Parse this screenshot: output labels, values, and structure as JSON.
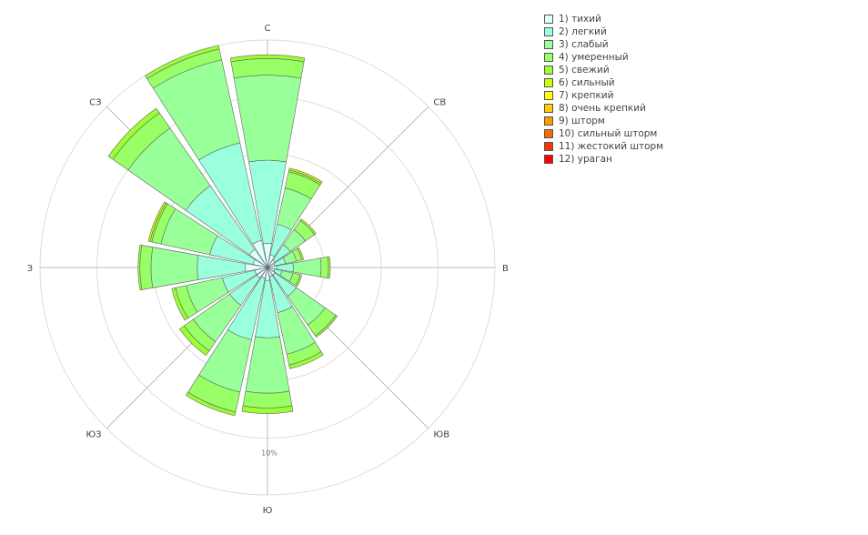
{
  "chart_data": {
    "type": "barpolar",
    "title": "",
    "directions": [
      "С",
      "ССВ",
      "СВ",
      "ВСВ",
      "В",
      "ВЮВ",
      "ЮВ",
      "ЮЮВ",
      "Ю",
      "ЮЮЗ",
      "ЮЗ",
      "ЗЮЗ",
      "З",
      "ЗСЗ",
      "СЗ",
      "ССЗ"
    ],
    "direction_labels": [
      "С",
      "СВ",
      "В",
      "ЮВ",
      "Ю",
      "ЮЗ",
      "З",
      "СЗ"
    ],
    "radial_tick_label": "10%",
    "radial_range": [
      0,
      12.3
    ],
    "series": [
      {
        "name": "1) тихий",
        "color": "#e0ffff",
        "values": [
          1.3,
          0.7,
          0.5,
          0.4,
          0.5,
          0.4,
          0.5,
          0.5,
          0.7,
          0.6,
          0.7,
          0.7,
          1.2,
          0.8,
          1.2,
          1.5
        ]
      },
      {
        "name": "2) легкий",
        "color": "#99ffdd",
        "values": [
          5.8,
          2.4,
          1.5,
          1.0,
          1.4,
          0.8,
          1.9,
          2.5,
          3.8,
          4.0,
          2.5,
          2.5,
          3.8,
          3.2,
          5.4,
          6.9
        ]
      },
      {
        "name": "3) слабый",
        "color": "#99ff99",
        "values": [
          10.4,
          4.4,
          2.5,
          1.6,
          2.9,
          1.4,
          3.8,
          4.8,
          6.8,
          6.9,
          4.9,
          4.5,
          6.3,
          5.9,
          9.2,
          11.5
        ]
      },
      {
        "name": "4) умеренный",
        "color": "#99ff66",
        "values": [
          11.3,
          5.3,
          3.1,
          1.9,
          3.3,
          1.8,
          4.5,
          5.4,
          7.6,
          8.0,
          5.5,
          5.1,
          6.9,
          6.4,
          10.2,
          12.1
        ]
      },
      {
        "name": "5) свежий",
        "color": "#99ff33",
        "values": [
          11.5,
          5.4,
          3.2,
          2.0,
          3.4,
          1.9,
          4.6,
          5.6,
          7.9,
          8.2,
          5.8,
          5.3,
          7.0,
          6.5,
          10.5,
          12.3
        ]
      },
      {
        "name": "6) сильный",
        "color": "#ccff00",
        "values": [
          11.5,
          5.5,
          3.2,
          2.0,
          3.4,
          1.9,
          4.6,
          5.6,
          7.9,
          8.2,
          5.8,
          5.3,
          7.0,
          6.6,
          10.5,
          12.3
        ]
      },
      {
        "name": "7) крепкий",
        "color": "#ffff00",
        "values": [
          11.5,
          5.5,
          3.2,
          2.0,
          3.4,
          1.9,
          4.6,
          5.6,
          7.9,
          8.2,
          5.8,
          5.3,
          7.0,
          6.6,
          10.5,
          12.3
        ]
      },
      {
        "name": "8) очень крепкий",
        "color": "#ffcc00",
        "values": [
          11.5,
          5.5,
          3.2,
          2.0,
          3.4,
          1.9,
          4.6,
          5.6,
          7.9,
          8.2,
          5.8,
          5.3,
          7.0,
          6.6,
          10.5,
          12.3
        ]
      },
      {
        "name": "9) шторм",
        "color": "#ff9900",
        "values": [
          11.5,
          5.5,
          3.2,
          2.0,
          3.4,
          1.9,
          4.6,
          5.6,
          7.9,
          8.2,
          5.8,
          5.3,
          7.0,
          6.6,
          10.5,
          12.3
        ]
      },
      {
        "name": "10) сильный шторм",
        "color": "#ff6600",
        "values": [
          11.5,
          5.5,
          3.2,
          2.0,
          3.4,
          1.9,
          4.6,
          5.6,
          7.9,
          8.2,
          5.8,
          5.3,
          7.0,
          6.6,
          10.5,
          12.3
        ]
      },
      {
        "name": "11) жестокий шторм",
        "color": "#ff3300",
        "values": [
          11.5,
          5.5,
          3.2,
          2.0,
          3.4,
          1.9,
          4.6,
          5.6,
          7.9,
          8.2,
          5.8,
          5.3,
          7.0,
          6.6,
          10.5,
          12.3
        ]
      },
      {
        "name": "12) ураган",
        "color": "#ff0000",
        "values": [
          11.5,
          5.5,
          3.2,
          2.0,
          3.4,
          1.9,
          4.6,
          5.6,
          7.9,
          8.2,
          5.8,
          5.3,
          7.0,
          6.6,
          10.5,
          12.3
        ]
      }
    ],
    "stacked": true,
    "legend": "right",
    "grid": true
  }
}
